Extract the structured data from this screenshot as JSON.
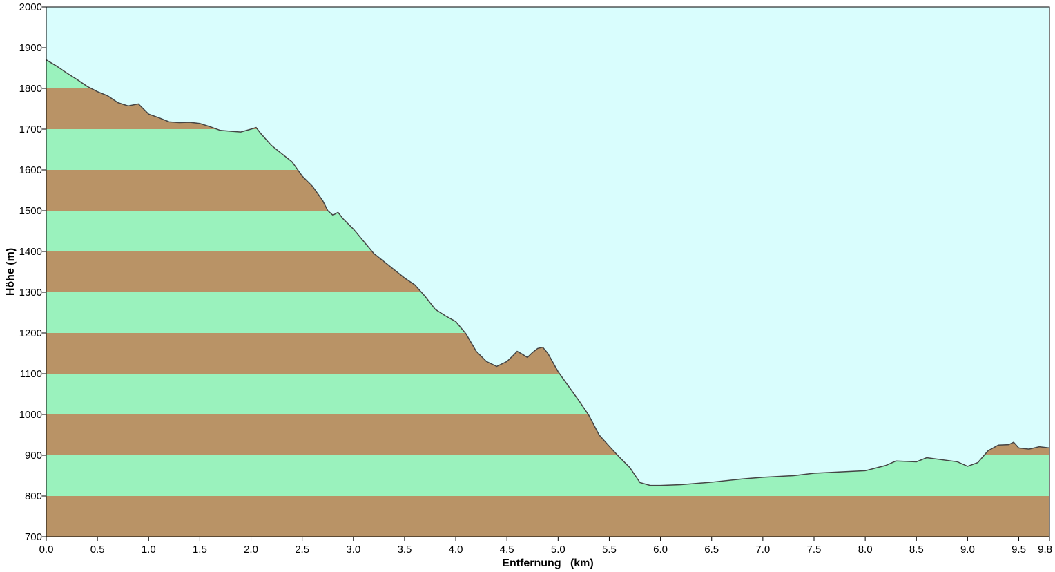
{
  "chart_data": {
    "type": "area",
    "xlabel": "Entfernung   (km)",
    "ylabel": "Höhe (m)",
    "xlim": [
      0,
      9.8
    ],
    "ylim": [
      700,
      2000
    ],
    "x_ticks": [
      "0.0",
      "0.5",
      "1.0",
      "1.5",
      "2.0",
      "2.5",
      "3.0",
      "3.5",
      "4.0",
      "4.5",
      "5.0",
      "5.5",
      "6.0",
      "6.5",
      "7.0",
      "7.5",
      "8.0",
      "8.5",
      "9.0",
      "9.5",
      "9.8"
    ],
    "y_ticks": [
      "700",
      "800",
      "900",
      "1000",
      "1100",
      "1200",
      "1300",
      "1400",
      "1500",
      "1600",
      "1700",
      "1800",
      "1900",
      "2000"
    ],
    "band_step": 100,
    "colors": {
      "sky": "#d9fdfd",
      "band_green": "#9af2bd",
      "band_brown": "#b99366",
      "line": "#444444"
    },
    "series": [
      {
        "x": [
          0.0,
          0.1,
          0.2,
          0.3,
          0.4,
          0.5,
          0.6,
          0.7,
          0.8,
          0.9,
          1.0,
          1.1,
          1.2,
          1.3,
          1.4,
          1.5,
          1.6,
          1.7,
          1.8,
          1.9,
          2.0,
          2.05,
          2.1,
          2.2,
          2.3,
          2.4,
          2.5,
          2.6,
          2.7,
          2.75,
          2.8,
          2.85,
          2.9,
          3.0,
          3.1,
          3.2,
          3.3,
          3.4,
          3.5,
          3.6,
          3.7,
          3.8,
          3.9,
          4.0,
          4.1,
          4.2,
          4.3,
          4.4,
          4.5,
          4.55,
          4.6,
          4.65,
          4.7,
          4.75,
          4.8,
          4.85,
          4.9,
          5.0,
          5.1,
          5.2,
          5.3,
          5.4,
          5.5,
          5.6,
          5.7,
          5.8,
          5.9,
          6.0,
          6.2,
          6.5,
          6.8,
          7.0,
          7.3,
          7.5,
          8.0,
          8.2,
          8.3,
          8.5,
          8.6,
          8.9,
          9.0,
          9.1,
          9.2,
          9.3,
          9.4,
          9.45,
          9.5,
          9.6,
          9.7,
          9.8
        ],
        "y": [
          1870,
          1855,
          1838,
          1822,
          1805,
          1792,
          1782,
          1765,
          1757,
          1762,
          1737,
          1728,
          1718,
          1716,
          1717,
          1714,
          1706,
          1697,
          1695,
          1693,
          1700,
          1704,
          1688,
          1660,
          1640,
          1620,
          1585,
          1560,
          1525,
          1500,
          1489,
          1496,
          1480,
          1455,
          1425,
          1395,
          1375,
          1355,
          1335,
          1318,
          1290,
          1258,
          1242,
          1228,
          1198,
          1155,
          1130,
          1118,
          1130,
          1142,
          1155,
          1148,
          1140,
          1152,
          1162,
          1165,
          1150,
          1105,
          1070,
          1035,
          998,
          950,
          922,
          895,
          870,
          833,
          826,
          826,
          828,
          834,
          842,
          846,
          850,
          856,
          862,
          875,
          886,
          884,
          894,
          884,
          873,
          882,
          911,
          925,
          926,
          932,
          918,
          915,
          921,
          918
        ]
      }
    ]
  }
}
